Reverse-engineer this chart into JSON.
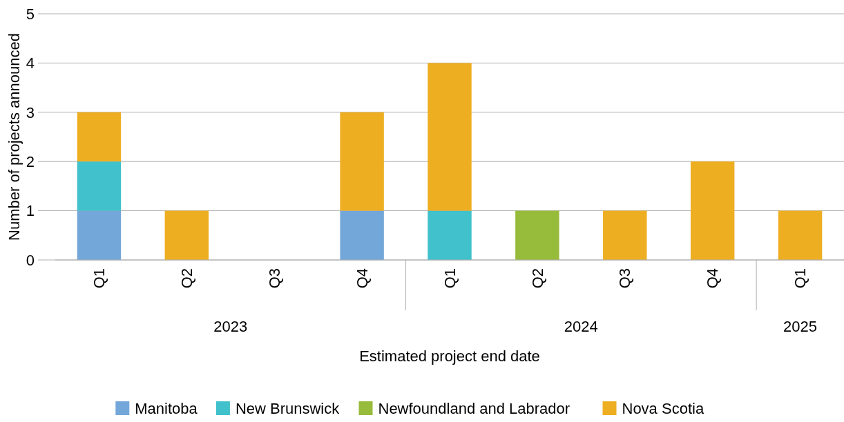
{
  "chart_data": {
    "type": "bar",
    "stacked": true,
    "xlabel": "Estimated project end date",
    "ylabel": "Number of projects announced",
    "categories": [
      "Q1",
      "Q2",
      "Q3",
      "Q4",
      "Q1",
      "Q2",
      "Q3",
      "Q4",
      "Q1"
    ],
    "annotations": [
      "2023",
      "2024",
      "2025"
    ],
    "series": [
      {
        "name": "Manitoba",
        "color": "#74a7d9",
        "values": [
          1,
          0,
          0,
          1,
          0,
          0,
          0,
          0,
          0
        ]
      },
      {
        "name": "New Brunswick",
        "color": "#40c1cb",
        "values": [
          1,
          0,
          0,
          0,
          1,
          0,
          0,
          0,
          0
        ]
      },
      {
        "name": "Newfoundland and Labrador",
        "color": "#97bb3a",
        "values": [
          0,
          0,
          0,
          0,
          0,
          1,
          0,
          0,
          0
        ]
      },
      {
        "name": "Nova Scotia",
        "color": "#eeae22",
        "values": [
          1,
          1,
          0,
          2,
          3,
          0,
          1,
          2,
          1
        ]
      }
    ],
    "ylim": [
      0,
      5
    ],
    "yticks": [
      0,
      1,
      2,
      3,
      4,
      5
    ],
    "grid": "y",
    "legend": "bottom"
  }
}
